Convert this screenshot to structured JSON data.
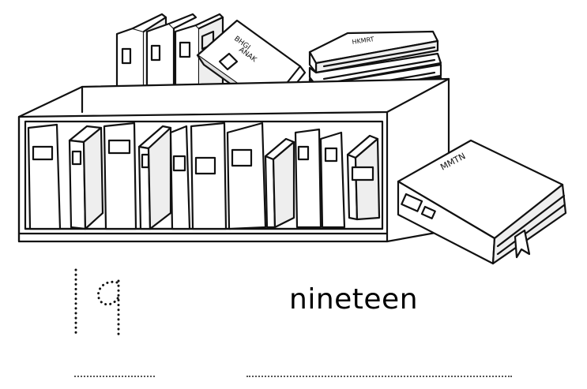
{
  "worksheet": {
    "numeral": "19",
    "word": "nineteen",
    "illustration": "bookshelf with books",
    "colors": {
      "ink": "#111111",
      "paper": "#ffffff",
      "dots": "#555555"
    },
    "icons": [
      "bookshelf-icon",
      "book-icon",
      "bookmark-icon"
    ]
  }
}
